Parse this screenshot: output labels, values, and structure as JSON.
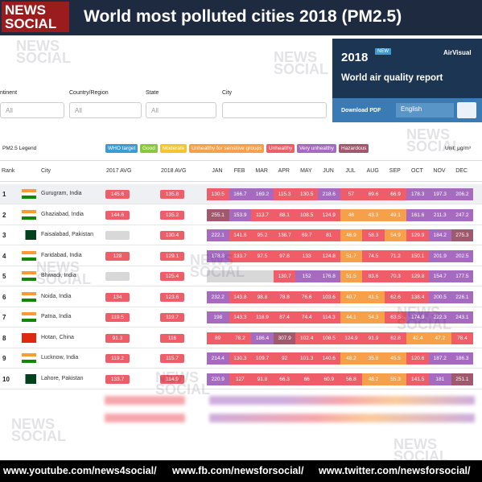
{
  "header": {
    "logo": [
      "NEWS",
      "SOCIAL"
    ],
    "title": "World most polluted cities 2018 (PM2.5)"
  },
  "filters": [
    {
      "label": "ntinent",
      "value": "All"
    },
    {
      "label": "Country/Region",
      "value": "All"
    },
    {
      "label": "State",
      "value": "All"
    },
    {
      "label": "City",
      "value": ""
    }
  ],
  "report": {
    "year": "2018",
    "badge": "NEW",
    "brand": "AirVisual",
    "title": "World air quality report",
    "download": "Download PDF",
    "language": "English"
  },
  "legend": {
    "title": "PM2.5 Legend",
    "unit": "Unit: µg/m³",
    "levels": [
      {
        "name": "WHO target",
        "color": "#3d9bd1"
      },
      {
        "name": "Good",
        "color": "#8cc63f"
      },
      {
        "name": "Moderate",
        "color": "#f2c531"
      },
      {
        "name": "Unhealthy for sensitive groups",
        "color": "#f7a04a"
      },
      {
        "name": "Unhealthy",
        "color": "#ef5e68"
      },
      {
        "name": "Very unhealthy",
        "color": "#a66bc0"
      },
      {
        "name": "Hazardous",
        "color": "#a0596d"
      }
    ]
  },
  "table": {
    "columns": [
      "Rank",
      "City",
      "2017 AVG",
      "2018 AVG",
      "JAN",
      "FEB",
      "MAR",
      "APR",
      "MAY",
      "JUN",
      "JUL",
      "AUG",
      "SEP",
      "OCT",
      "NOV",
      "DEC"
    ],
    "rows": [
      [
        1,
        "Gurugram, India",
        145.6,
        135.8,
        [
          130.5,
          166.7,
          169.2,
          115.3,
          130.5,
          218.6,
          57,
          69.6,
          66.9,
          178.3,
          197.3,
          206.2
        ]
      ],
      [
        2,
        "Ghaziabad, India",
        144.6,
        135.2,
        [
          255.1,
          153.9,
          113.7,
          88.1,
          108.5,
          124.9,
          48,
          43.3,
          49.1,
          161.6,
          211.3,
          247.2
        ]
      ],
      [
        3,
        "Faisalabad, Pakistan",
        null,
        130.4,
        [
          222.1,
          141.6,
          95.2,
          138.7,
          69.7,
          81,
          46.9,
          58.3,
          54.9,
          129.9,
          184.2,
          275.3
        ]
      ],
      [
        4,
        "Faridabad, India",
        128,
        129.1,
        [
          178.8,
          133.7,
          97.5,
          97.8,
          133,
          124.8,
          51.7,
          74.5,
          71.2,
          150.1,
          201.9,
          202.5
        ]
      ],
      [
        5,
        "Bhiwadi, India",
        null,
        125.4,
        [
          null,
          null,
          null,
          130.7,
          152,
          176.8,
          51.5,
          83.6,
          70.3,
          129.8,
          154.7,
          177.5
        ]
      ],
      [
        6,
        "Noida, India",
        134,
        123.6,
        [
          232.2,
          143.8,
          98.8,
          78.8,
          76.6,
          103.6,
          40.7,
          41.5,
          62.6,
          138.4,
          200.5,
          226.1
        ]
      ],
      [
        7,
        "Patna, India",
        119.5,
        119.7,
        [
          198,
          143.3,
          118.9,
          87.4,
          74.4,
          114.3,
          44.1,
          54.3,
          63.5,
          174.9,
          222.3,
          243.1
        ]
      ],
      [
        8,
        "Hotan, China",
        91.3,
        116,
        [
          89,
          78.2,
          186.4,
          307.9,
          102.4,
          108.5,
          124.9,
          91.9,
          62.8,
          42.4,
          47.2,
          78.4
        ]
      ],
      [
        9,
        "Lucknow, India",
        119.2,
        115.7,
        [
          214.4,
          130.3,
          109.7,
          92,
          101.3,
          140.6,
          48.2,
          35.8,
          45.5,
          120.6,
          187.2,
          186.3
        ]
      ],
      [
        10,
        "Lahore, Pakistan",
        133.7,
        114.9,
        [
          220.9,
          127,
          91.8,
          66.3,
          66,
          60.9,
          56.8,
          48.2,
          55.3,
          141.5,
          181,
          251.1
        ]
      ]
    ]
  },
  "watermark": [
    "NEWS",
    "SOCIAL"
  ],
  "footer": [
    "www.youtube.com/news4social/",
    "www.fb.com/newsforsocial/",
    "www.twitter.com/newsforsocial/"
  ]
}
